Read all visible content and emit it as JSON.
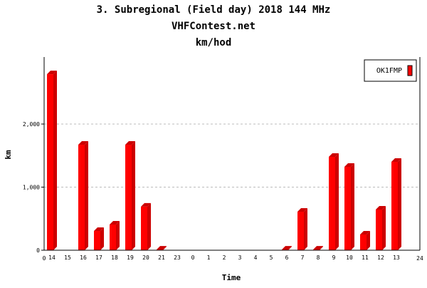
{
  "chart_data": {
    "type": "bar",
    "title": "3. Subregional (Field day) 2018 144 MHz",
    "subtitle": "VHFContest.net",
    "subtitle2": "km/hod",
    "xlabel": "Time",
    "ylabel": "km",
    "ylim": [
      0,
      3000
    ],
    "yticks": [
      0,
      1000,
      2000
    ],
    "ytick_labels": [
      "0",
      "1,000",
      "2,000"
    ],
    "x_start_label": "0",
    "x_end_label": "24",
    "categories": [
      "14",
      "15",
      "16",
      "17",
      "18",
      "19",
      "20",
      "21",
      "23",
      "0",
      "1",
      "2",
      "3",
      "4",
      "5",
      "6",
      "7",
      "8",
      "9",
      "10",
      "11",
      "12",
      "13"
    ],
    "series": [
      {
        "name": "OK1FMP",
        "color": "#ff0000",
        "values": [
          2790,
          0,
          1672,
          305,
          407,
          1672,
          690,
          10,
          0,
          0,
          0,
          0,
          0,
          0,
          0,
          10,
          610,
          10,
          1480,
          1322,
          249,
          644,
          1401
        ]
      }
    ],
    "legend": "top-right",
    "grid": true
  }
}
